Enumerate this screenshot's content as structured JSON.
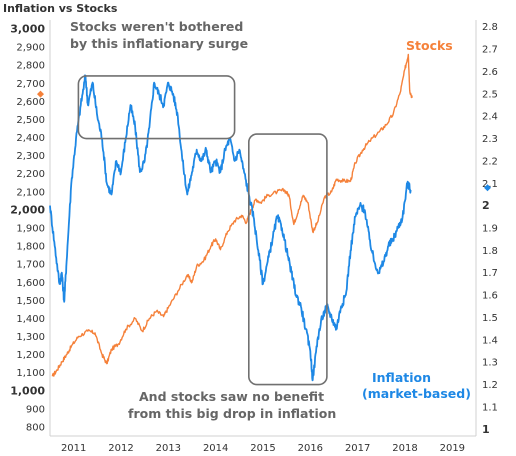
{
  "chart_data": {
    "type": "line",
    "title": "Inflation vs Stocks",
    "x_ticks": [
      "2011",
      "2012",
      "2013",
      "2014",
      "2015",
      "2016",
      "2017",
      "2018",
      "2019"
    ],
    "xlim": [
      2010.5,
      2019.5
    ],
    "left_axis": {
      "ticks": [
        "800",
        "900",
        "1,000",
        "1,100",
        "1,200",
        "1,300",
        "1,400",
        "1,500",
        "1,600",
        "1,700",
        "1,800",
        "1,900",
        "2,000",
        "2,100",
        "2,200",
        "2,300",
        "2,400",
        "2,500",
        "2,600",
        "2,700",
        "2,800",
        "2,900",
        "3,000"
      ],
      "ylim": [
        750,
        3050
      ],
      "current_marker": 2640
    },
    "right_axis": {
      "ticks": [
        "1",
        "1.1",
        "1.2",
        "1.3",
        "1.4",
        "1.5",
        "1.6",
        "1.7",
        "1.8",
        "1.9",
        "2",
        "2.1",
        "2.2",
        "2.3",
        "2.4",
        "2.5",
        "2.6",
        "2.7",
        "2.8"
      ],
      "ylim": [
        0.97,
        2.83
      ],
      "current_marker": 2.08
    },
    "series": [
      {
        "name": "Stocks",
        "axis": "left",
        "color": "#F5813A",
        "points": [
          [
            2010.55,
            1080
          ],
          [
            2010.65,
            1115
          ],
          [
            2010.75,
            1160
          ],
          [
            2010.85,
            1200
          ],
          [
            2010.95,
            1245
          ],
          [
            2011.1,
            1300
          ],
          [
            2011.3,
            1330
          ],
          [
            2011.45,
            1320
          ],
          [
            2011.6,
            1200
          ],
          [
            2011.7,
            1150
          ],
          [
            2011.8,
            1230
          ],
          [
            2011.95,
            1260
          ],
          [
            2012.1,
            1340
          ],
          [
            2012.3,
            1400
          ],
          [
            2012.45,
            1330
          ],
          [
            2012.6,
            1400
          ],
          [
            2012.75,
            1440
          ],
          [
            2012.9,
            1410
          ],
          [
            2013.0,
            1460
          ],
          [
            2013.2,
            1550
          ],
          [
            2013.4,
            1640
          ],
          [
            2013.5,
            1600
          ],
          [
            2013.6,
            1690
          ],
          [
            2013.75,
            1720
          ],
          [
            2013.9,
            1800
          ],
          [
            2014.0,
            1840
          ],
          [
            2014.1,
            1780
          ],
          [
            2014.25,
            1880
          ],
          [
            2014.4,
            1940
          ],
          [
            2014.55,
            1970
          ],
          [
            2014.65,
            1930
          ],
          [
            2014.75,
            2000
          ],
          [
            2014.85,
            2060
          ],
          [
            2014.95,
            2040
          ],
          [
            2015.1,
            2080
          ],
          [
            2015.3,
            2100
          ],
          [
            2015.45,
            2110
          ],
          [
            2015.55,
            2080
          ],
          [
            2015.65,
            1920
          ],
          [
            2015.75,
            2000
          ],
          [
            2015.85,
            2080
          ],
          [
            2015.95,
            2040
          ],
          [
            2016.05,
            1880
          ],
          [
            2016.15,
            1930
          ],
          [
            2016.3,
            2070
          ],
          [
            2016.45,
            2100
          ],
          [
            2016.55,
            2170
          ],
          [
            2016.7,
            2160
          ],
          [
            2016.85,
            2160
          ],
          [
            2016.95,
            2260
          ],
          [
            2017.1,
            2330
          ],
          [
            2017.25,
            2380
          ],
          [
            2017.45,
            2430
          ],
          [
            2017.6,
            2470
          ],
          [
            2017.75,
            2530
          ],
          [
            2017.9,
            2650
          ],
          [
            2018.0,
            2780
          ],
          [
            2018.07,
            2860
          ],
          [
            2018.1,
            2660
          ],
          [
            2018.15,
            2620
          ]
        ]
      },
      {
        "name": "Inflation (market-based)",
        "axis": "right",
        "color": "#1E88E5",
        "points": [
          [
            2010.5,
            2.0
          ],
          [
            2010.6,
            1.82
          ],
          [
            2010.7,
            1.65
          ],
          [
            2010.75,
            1.7
          ],
          [
            2010.8,
            1.57
          ],
          [
            2010.85,
            1.75
          ],
          [
            2010.95,
            2.1
          ],
          [
            2011.05,
            2.3
          ],
          [
            2011.15,
            2.45
          ],
          [
            2011.25,
            2.58
          ],
          [
            2011.3,
            2.45
          ],
          [
            2011.4,
            2.55
          ],
          [
            2011.5,
            2.4
          ],
          [
            2011.6,
            2.3
          ],
          [
            2011.7,
            2.1
          ],
          [
            2011.8,
            2.05
          ],
          [
            2011.9,
            2.2
          ],
          [
            2012.0,
            2.15
          ],
          [
            2012.1,
            2.3
          ],
          [
            2012.2,
            2.45
          ],
          [
            2012.3,
            2.35
          ],
          [
            2012.4,
            2.15
          ],
          [
            2012.5,
            2.2
          ],
          [
            2012.6,
            2.35
          ],
          [
            2012.7,
            2.55
          ],
          [
            2012.8,
            2.5
          ],
          [
            2012.9,
            2.45
          ],
          [
            2013.0,
            2.55
          ],
          [
            2013.1,
            2.5
          ],
          [
            2013.2,
            2.4
          ],
          [
            2013.3,
            2.2
          ],
          [
            2013.4,
            2.05
          ],
          [
            2013.5,
            2.15
          ],
          [
            2013.6,
            2.25
          ],
          [
            2013.7,
            2.2
          ],
          [
            2013.8,
            2.25
          ],
          [
            2013.9,
            2.15
          ],
          [
            2014.0,
            2.2
          ],
          [
            2014.1,
            2.15
          ],
          [
            2014.2,
            2.25
          ],
          [
            2014.3,
            2.3
          ],
          [
            2014.4,
            2.2
          ],
          [
            2014.5,
            2.25
          ],
          [
            2014.6,
            2.15
          ],
          [
            2014.7,
            2.05
          ],
          [
            2014.8,
            1.95
          ],
          [
            2014.9,
            1.8
          ],
          [
            2015.0,
            1.65
          ],
          [
            2015.1,
            1.75
          ],
          [
            2015.2,
            1.85
          ],
          [
            2015.3,
            1.95
          ],
          [
            2015.4,
            1.9
          ],
          [
            2015.5,
            1.8
          ],
          [
            2015.6,
            1.7
          ],
          [
            2015.7,
            1.6
          ],
          [
            2015.8,
            1.55
          ],
          [
            2015.9,
            1.45
          ],
          [
            2016.0,
            1.35
          ],
          [
            2016.05,
            1.22
          ],
          [
            2016.15,
            1.4
          ],
          [
            2016.25,
            1.5
          ],
          [
            2016.35,
            1.55
          ],
          [
            2016.45,
            1.5
          ],
          [
            2016.55,
            1.45
          ],
          [
            2016.65,
            1.55
          ],
          [
            2016.75,
            1.6
          ],
          [
            2016.85,
            1.8
          ],
          [
            2016.95,
            1.95
          ],
          [
            2017.05,
            2.0
          ],
          [
            2017.15,
            1.98
          ],
          [
            2017.25,
            1.85
          ],
          [
            2017.35,
            1.75
          ],
          [
            2017.45,
            1.7
          ],
          [
            2017.55,
            1.75
          ],
          [
            2017.65,
            1.82
          ],
          [
            2017.75,
            1.85
          ],
          [
            2017.85,
            1.9
          ],
          [
            2017.95,
            1.95
          ],
          [
            2018.05,
            2.1
          ],
          [
            2018.12,
            2.07
          ]
        ]
      }
    ],
    "annotations": [
      {
        "lines": [
          "Stocks weren't bothered",
          "by this inflationary surge"
        ],
        "box": {
          "x0": 2011.1,
          "x1": 2014.4,
          "y0": 2.3,
          "y1": 2.58,
          "axis": "right"
        }
      },
      {
        "lines": [
          "And stocks saw no benefit",
          "from this big drop in inflation"
        ],
        "box": {
          "x0": 2014.7,
          "x1": 2016.35,
          "y0": 1.2,
          "y1": 2.32,
          "axis": "right"
        }
      }
    ],
    "legend": {
      "stocks_label": "Stocks",
      "inflation_lines": [
        "Inflation",
        "(market-based)"
      ]
    },
    "grid": false
  }
}
